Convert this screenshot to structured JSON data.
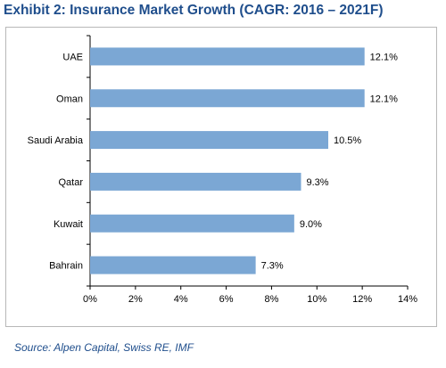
{
  "title": "Exhibit 2:  Insurance Market Growth (CAGR: 2016 – 2021F)",
  "source": "Source:  Alpen Capital, Swiss RE, IMF",
  "chart_data": {
    "type": "bar",
    "orientation": "horizontal",
    "categories": [
      "UAE",
      "Oman",
      "Saudi Arabia",
      "Qatar",
      "Kuwait",
      "Bahrain"
    ],
    "values": [
      12.1,
      12.1,
      10.5,
      9.3,
      9.0,
      7.3
    ],
    "value_labels": [
      "12.1%",
      "12.1%",
      "10.5%",
      "9.3%",
      "9.0%",
      "7.3%"
    ],
    "xlim": [
      0,
      14
    ],
    "xticks": [
      0,
      2,
      4,
      6,
      8,
      10,
      12,
      14
    ],
    "xtick_labels": [
      "0%",
      "2%",
      "4%",
      "6%",
      "8%",
      "10%",
      "12%",
      "14%"
    ],
    "bar_color": "#7ba7d4",
    "grid": false,
    "legend": "none"
  }
}
